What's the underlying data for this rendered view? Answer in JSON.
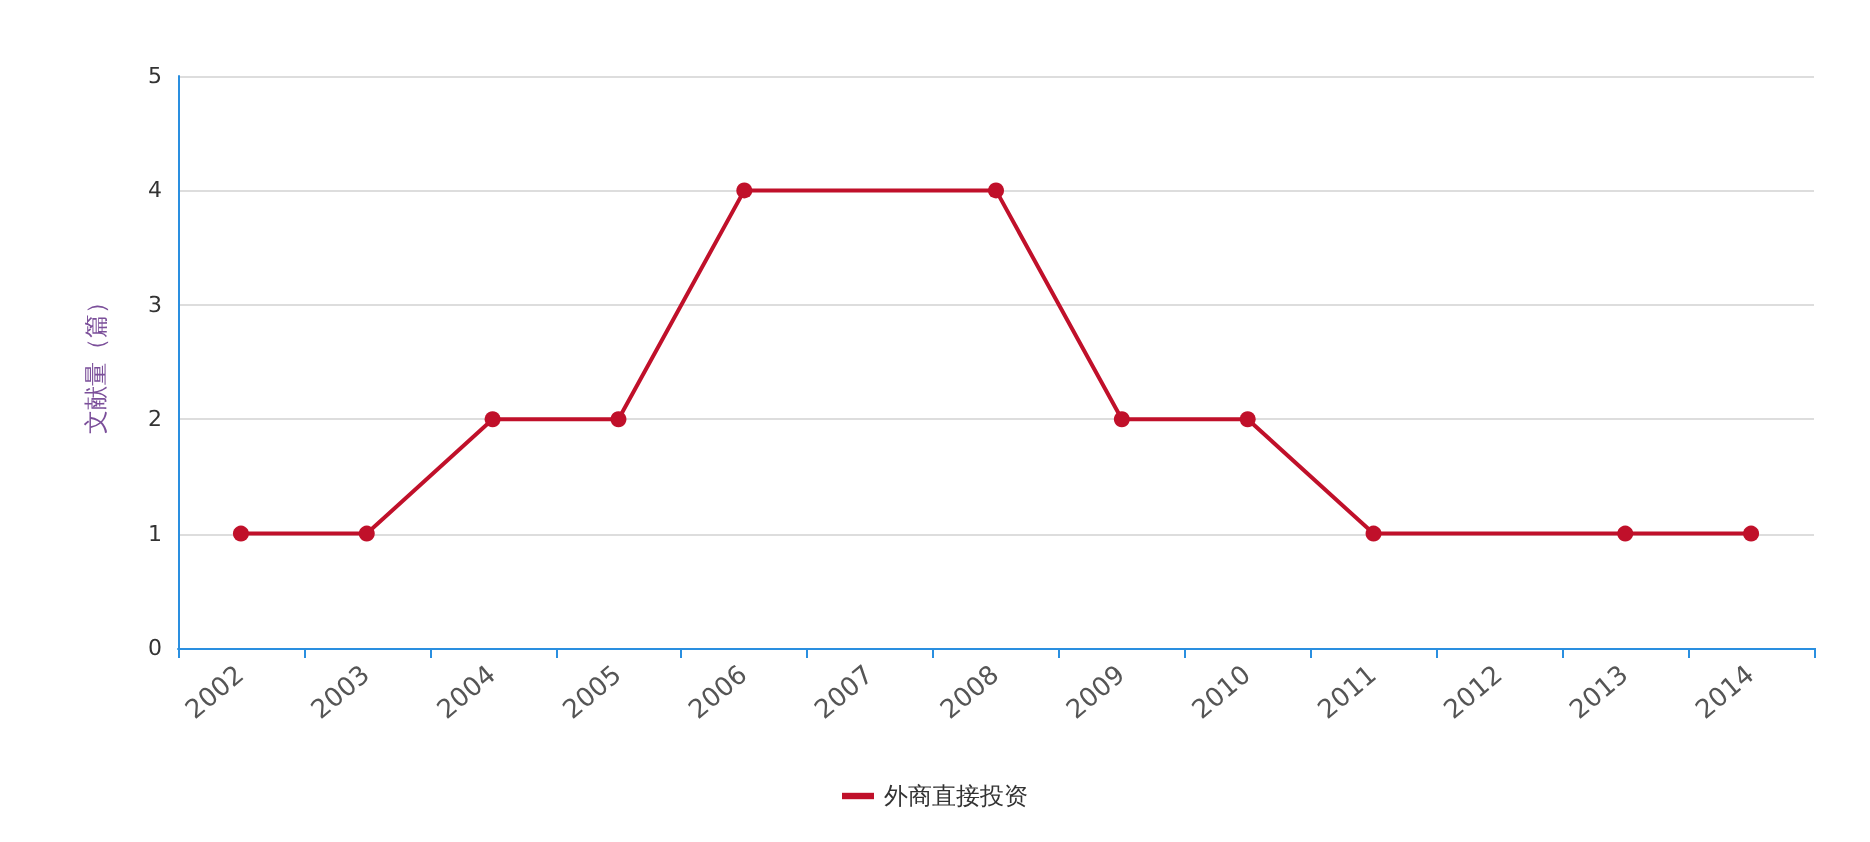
{
  "chart_data": {
    "type": "line",
    "ylabel": "文献量（篇）",
    "categories": [
      "2002",
      "2003",
      "2004",
      "2005",
      "2006",
      "2007",
      "2008",
      "2009",
      "2010",
      "2011",
      "2012",
      "2013",
      "2014"
    ],
    "series": [
      {
        "name": "外商直接投资",
        "color": "#c0102a",
        "values": [
          1,
          1,
          2,
          2,
          4,
          null,
          4,
          2,
          2,
          1,
          null,
          1,
          1
        ]
      }
    ],
    "ylim": [
      0,
      5
    ],
    "yticks": [
      0,
      1,
      2,
      3,
      4,
      5
    ],
    "grid": "y",
    "legend": "bottom",
    "marker": "circle",
    "line_style": "solid"
  }
}
